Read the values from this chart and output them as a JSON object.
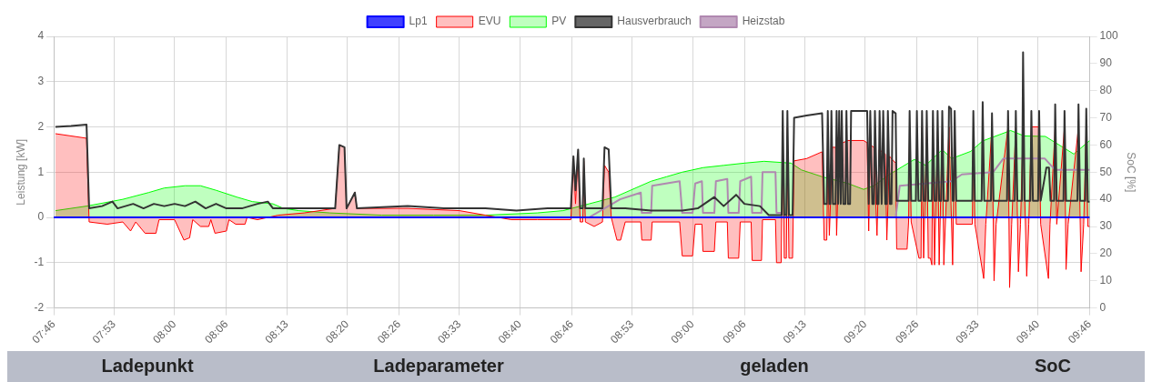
{
  "chart_data": {
    "type": "line",
    "xlim": [
      7.7667,
      9.7667
    ],
    "xticks": [
      {
        "value": 7.7667,
        "label": "07:46"
      },
      {
        "value": 7.8833,
        "label": "07:53"
      },
      {
        "value": 8.0,
        "label": "08:00"
      },
      {
        "value": 8.1,
        "label": "08:06"
      },
      {
        "value": 8.2167,
        "label": "08:13"
      },
      {
        "value": 8.3333,
        "label": "08:20"
      },
      {
        "value": 8.4333,
        "label": "08:26"
      },
      {
        "value": 8.55,
        "label": "08:33"
      },
      {
        "value": 8.6667,
        "label": "08:40"
      },
      {
        "value": 8.7667,
        "label": "08:46"
      },
      {
        "value": 8.8833,
        "label": "08:53"
      },
      {
        "value": 9.0,
        "label": "09:00"
      },
      {
        "value": 9.1,
        "label": "09:06"
      },
      {
        "value": 9.2167,
        "label": "09:13"
      },
      {
        "value": 9.3333,
        "label": "09:20"
      },
      {
        "value": 9.4333,
        "label": "09:26"
      },
      {
        "value": 9.55,
        "label": "09:33"
      },
      {
        "value": 9.6667,
        "label": "09:40"
      },
      {
        "value": 9.7667,
        "label": "09:46"
      }
    ],
    "ylim": [
      -2,
      4
    ],
    "yticks": [
      -2,
      -1,
      0,
      1,
      2,
      3,
      4
    ],
    "ylabel": "Leistung [kW]",
    "y2lim": [
      0,
      100
    ],
    "y2ticks": [
      0,
      10,
      20,
      30,
      40,
      50,
      60,
      70,
      80,
      90,
      100
    ],
    "y2label": "SoC [%]",
    "grid": true,
    "legend": "top",
    "marker": "none",
    "line_style": "solid",
    "annotations": [
      "Ladepunkt",
      "Ladeparameter",
      "geladen",
      "SoC"
    ],
    "series": [
      {
        "name": "Lp1",
        "color": "#0000ff",
        "type": "line",
        "x": [
          7.7667,
          9.7667
        ],
        "values": [
          0,
          0
        ]
      },
      {
        "name": "EVU",
        "color": "#ff0000",
        "type": "area",
        "x": [
          7.77,
          7.8,
          7.83,
          7.835,
          7.87,
          7.9,
          7.915,
          7.925,
          7.943,
          7.964,
          7.97,
          8.0,
          8.018,
          8.029,
          8.035,
          8.05,
          8.066,
          8.07,
          8.078,
          8.1,
          8.105,
          8.118,
          8.136,
          8.14,
          8.16,
          8.2,
          8.25,
          8.31,
          8.318,
          8.328,
          8.332,
          8.348,
          8.352,
          8.45,
          8.55,
          8.6,
          8.65,
          8.7,
          8.765,
          8.77,
          8.774,
          8.779,
          8.783,
          8.788,
          8.79,
          8.793,
          8.81,
          8.826,
          8.83,
          8.838,
          8.843,
          8.854,
          8.861,
          8.87,
          8.9,
          8.902,
          8.92,
          8.922,
          8.975,
          8.98,
          9.0,
          9.005,
          9.018,
          9.02,
          9.042,
          9.045,
          9.067,
          9.069,
          9.089,
          9.092,
          9.113,
          9.115,
          9.133,
          9.135,
          9.16,
          9.162,
          9.171,
          9.174,
          9.177,
          9.181,
          9.183,
          9.186,
          9.193,
          9.196,
          9.22,
          9.25,
          9.254,
          9.259,
          9.261,
          9.264,
          9.27,
          9.276,
          9.278,
          9.283,
          9.29,
          9.3,
          9.33,
          9.337,
          9.34,
          9.343,
          9.35,
          9.356,
          9.36,
          9.372,
          9.375,
          9.38,
          9.392,
          9.394,
          9.414,
          9.417,
          9.419,
          9.422,
          9.437,
          9.441,
          9.443,
          9.446,
          9.452,
          9.455,
          9.459,
          9.462,
          9.464,
          9.467,
          9.473,
          9.476,
          9.482,
          9.485,
          9.495,
          9.502,
          9.506,
          9.509,
          9.54,
          9.542,
          9.545,
          9.562,
          9.566,
          9.578,
          9.582,
          9.586,
          9.609,
          9.612,
          9.616,
          9.624,
          9.629,
          9.633,
          9.638,
          9.645,
          9.649,
          9.654,
          9.669,
          9.672,
          9.687,
          9.69,
          9.7,
          9.703,
          9.718,
          9.721,
          9.725,
          9.745,
          9.75,
          9.755,
          9.76,
          9.763,
          9.7667
        ],
        "values": [
          1.85,
          1.8,
          1.75,
          -0.1,
          -0.15,
          -0.1,
          -0.3,
          -0.1,
          -0.35,
          -0.35,
          -0.05,
          -0.05,
          -0.5,
          -0.45,
          -0.05,
          -0.2,
          -0.2,
          -0.05,
          -0.35,
          -0.3,
          -0.05,
          -0.15,
          -0.15,
          0.0,
          -0.05,
          0.05,
          0.1,
          0.2,
          1.6,
          1.55,
          0.2,
          0.55,
          0.2,
          0.2,
          0.15,
          0.05,
          -0.05,
          -0.05,
          -0.05,
          1.3,
          0.3,
          1.4,
          -0.1,
          -0.1,
          1.25,
          -0.1,
          -0.2,
          -0.1,
          1.15,
          1.0,
          0.0,
          -0.5,
          -0.5,
          -0.1,
          -0.1,
          -0.5,
          -0.5,
          -0.1,
          -0.1,
          -0.85,
          -0.85,
          -0.15,
          -0.15,
          -0.75,
          -0.75,
          -0.1,
          -0.1,
          -0.9,
          -0.9,
          -0.1,
          -0.1,
          -0.95,
          -0.95,
          -0.05,
          -0.05,
          -1.0,
          -1.0,
          2.0,
          -0.9,
          -0.9,
          2.0,
          -0.9,
          -0.9,
          1.25,
          1.3,
          1.45,
          -0.5,
          -0.5,
          1.5,
          -0.4,
          1.55,
          1.55,
          -0.4,
          1.6,
          1.65,
          1.7,
          1.7,
          1.65,
          -0.3,
          1.6,
          1.55,
          -0.4,
          1.5,
          1.4,
          -0.5,
          1.35,
          1.2,
          -0.7,
          -0.7,
          -0.1,
          2.0,
          -0.1,
          -0.9,
          -0.9,
          2.0,
          -0.9,
          2.0,
          -0.9,
          -0.9,
          -1.05,
          1.8,
          -1.05,
          1.9,
          -1.05,
          2.0,
          -1.05,
          2.0,
          -1.05,
          2.0,
          -0.15,
          -0.15,
          2.0,
          -0.15,
          -1.35,
          -0.15,
          2.0,
          -1.4,
          -0.15,
          2.0,
          -1.55,
          -0.15,
          2.0,
          -1.2,
          -0.15,
          2.0,
          -1.3,
          -0.15,
          2.0,
          2.0,
          -0.15,
          -1.35,
          -0.15,
          2.0,
          -0.15,
          2.0,
          -1.15,
          -0.15,
          2.0,
          -1.2,
          -0.15,
          2.0,
          -0.2,
          -0.2
        ]
      },
      {
        "name": "PV",
        "color": "#00ff00",
        "type": "area",
        "x": [
          7.77,
          7.83,
          7.9,
          7.95,
          7.98,
          8.02,
          8.05,
          8.08,
          8.12,
          8.15,
          8.19,
          8.21,
          8.24,
          8.3,
          8.4,
          8.5,
          8.6,
          8.7,
          8.75,
          8.8,
          8.85,
          8.88,
          8.92,
          8.95,
          8.98,
          9.02,
          9.06,
          9.1,
          9.138,
          9.19,
          9.21,
          9.25,
          9.3,
          9.33,
          9.35,
          9.38,
          9.428,
          9.45,
          9.482,
          9.5,
          9.537,
          9.56,
          9.614,
          9.64,
          9.681,
          9.736,
          9.7667
        ],
        "values": [
          0.15,
          0.25,
          0.4,
          0.55,
          0.65,
          0.7,
          0.7,
          0.6,
          0.45,
          0.35,
          0.3,
          0.2,
          0.15,
          0.1,
          0.05,
          0.05,
          0.05,
          0.1,
          0.15,
          0.3,
          0.45,
          0.6,
          0.8,
          0.9,
          1.0,
          1.1,
          1.15,
          1.2,
          1.24,
          1.2,
          1.05,
          0.9,
          0.75,
          0.62,
          0.7,
          0.95,
          1.28,
          1.15,
          1.5,
          1.3,
          1.46,
          1.69,
          1.92,
          1.8,
          1.79,
          1.4,
          1.7
        ]
      },
      {
        "name": "Hausverbrauch",
        "color": "#333333",
        "type": "line",
        "x": [
          7.77,
          7.8,
          7.83,
          7.835,
          7.86,
          7.88,
          7.89,
          7.92,
          7.94,
          7.96,
          7.98,
          8.0,
          8.02,
          8.04,
          8.06,
          8.08,
          8.1,
          8.13,
          8.16,
          8.18,
          8.19,
          8.25,
          8.31,
          8.318,
          8.328,
          8.332,
          8.348,
          8.352,
          8.45,
          8.52,
          8.6,
          8.66,
          8.72,
          8.765,
          8.77,
          8.774,
          8.779,
          8.783,
          8.788,
          8.79,
          8.793,
          8.826,
          8.83,
          8.838,
          8.843,
          8.87,
          8.92,
          8.98,
          9.01,
          9.042,
          9.06,
          9.084,
          9.1,
          9.13,
          9.147,
          9.172,
          9.174,
          9.177,
          9.181,
          9.183,
          9.186,
          9.193,
          9.196,
          9.22,
          9.25,
          9.254,
          9.259,
          9.261,
          9.264,
          9.266,
          9.268,
          9.271,
          9.276,
          9.278,
          9.281,
          9.283,
          9.286,
          9.288,
          9.291,
          9.295,
          9.297,
          9.3,
          9.304,
          9.306,
          9.337,
          9.34,
          9.343,
          9.347,
          9.35,
          9.352,
          9.356,
          9.359,
          9.361,
          9.365,
          9.368,
          9.372,
          9.375,
          9.377,
          9.381,
          9.384,
          9.386,
          9.392,
          9.394,
          9.417,
          9.419,
          9.422,
          9.431,
          9.433,
          9.436,
          9.441,
          9.443,
          9.446,
          9.45,
          9.452,
          9.455,
          9.462,
          9.464,
          9.467,
          9.471,
          9.473,
          9.476,
          9.48,
          9.482,
          9.485,
          9.493,
          9.495,
          9.499,
          9.502,
          9.504,
          9.506,
          9.509,
          9.54,
          9.542,
          9.545,
          9.558,
          9.56,
          9.563,
          9.576,
          9.578,
          9.581,
          9.607,
          9.609,
          9.612,
          9.622,
          9.624,
          9.627,
          9.636,
          9.638,
          9.641,
          9.652,
          9.654,
          9.657,
          9.667,
          9.669,
          9.672,
          9.683,
          9.688,
          9.691,
          9.698,
          9.7,
          9.703,
          9.716,
          9.718,
          9.721,
          9.743,
          9.745,
          9.748,
          9.758,
          9.76,
          9.763,
          9.7667
        ],
        "values": [
          2.0,
          2.02,
          2.05,
          0.2,
          0.25,
          0.35,
          0.2,
          0.3,
          0.2,
          0.3,
          0.25,
          0.3,
          0.25,
          0.35,
          0.2,
          0.3,
          0.2,
          0.2,
          0.3,
          0.35,
          0.2,
          0.2,
          0.2,
          1.6,
          1.55,
          0.2,
          0.55,
          0.2,
          0.25,
          0.2,
          0.2,
          0.15,
          0.2,
          0.2,
          1.35,
          0.6,
          1.5,
          0.2,
          0.2,
          1.3,
          0.2,
          0.2,
          1.55,
          1.5,
          0.2,
          0.2,
          0.15,
          0.15,
          0.2,
          0.45,
          0.25,
          0.5,
          0.3,
          0.25,
          0.05,
          0.05,
          2.35,
          0.05,
          0.05,
          2.35,
          0.05,
          0.05,
          2.2,
          2.25,
          2.3,
          0.3,
          0.3,
          2.35,
          0.3,
          0.3,
          2.35,
          0.3,
          0.3,
          2.35,
          0.3,
          2.35,
          0.3,
          2.35,
          0.3,
          0.3,
          2.35,
          0.3,
          0.3,
          2.35,
          2.35,
          0.3,
          2.35,
          0.3,
          0.3,
          2.35,
          0.3,
          0.3,
          2.35,
          0.3,
          2.35,
          0.3,
          0.3,
          2.35,
          0.3,
          0.3,
          2.35,
          2.3,
          0.37,
          0.37,
          2.35,
          0.37,
          0.37,
          2.35,
          0.37,
          0.37,
          2.35,
          0.37,
          0.37,
          2.35,
          0.37,
          0.37,
          2.35,
          0.37,
          0.37,
          2.35,
          0.37,
          0.37,
          2.35,
          0.37,
          0.37,
          2.45,
          2.4,
          0.37,
          0.37,
          2.35,
          0.37,
          0.37,
          2.35,
          0.37,
          0.37,
          2.55,
          0.37,
          0.37,
          2.3,
          0.37,
          0.37,
          2.35,
          0.37,
          0.37,
          2.35,
          0.37,
          0.37,
          3.65,
          0.37,
          0.37,
          2.35,
          0.37,
          0.37,
          2.35,
          0.37,
          1.1,
          1.1,
          0.37,
          0.37,
          2.5,
          0.37,
          0.37,
          2.35,
          0.37,
          0.37,
          2.5,
          0.37,
          0.37,
          2.4,
          0.35,
          0.35
        ]
      },
      {
        "name": "Heizstab",
        "color": "#b088b0",
        "type": "line",
        "x": [
          7.77,
          8.8,
          8.86,
          8.9,
          8.902,
          8.92,
          8.922,
          8.975,
          8.98,
          9.0,
          9.005,
          9.018,
          9.02,
          9.042,
          9.045,
          9.067,
          9.069,
          9.089,
          9.092,
          9.113,
          9.115,
          9.133,
          9.135,
          9.16,
          9.162,
          9.171,
          9.174,
          9.392,
          9.4,
          9.45,
          9.5,
          9.52,
          9.58,
          9.6,
          9.68,
          9.7,
          9.7667
        ],
        "values": [
          0,
          0,
          0.4,
          0.55,
          0.1,
          0.1,
          0.7,
          0.8,
          0.1,
          0.1,
          0.75,
          0.8,
          0.1,
          0.1,
          0.8,
          0.85,
          0.1,
          0.1,
          0.8,
          0.9,
          0.1,
          0.1,
          1.0,
          1.0,
          0.1,
          0.1,
          0,
          0,
          0.7,
          0.75,
          0.8,
          0.95,
          1.0,
          1.3,
          1.3,
          1.05,
          1.05
        ]
      }
    ]
  }
}
